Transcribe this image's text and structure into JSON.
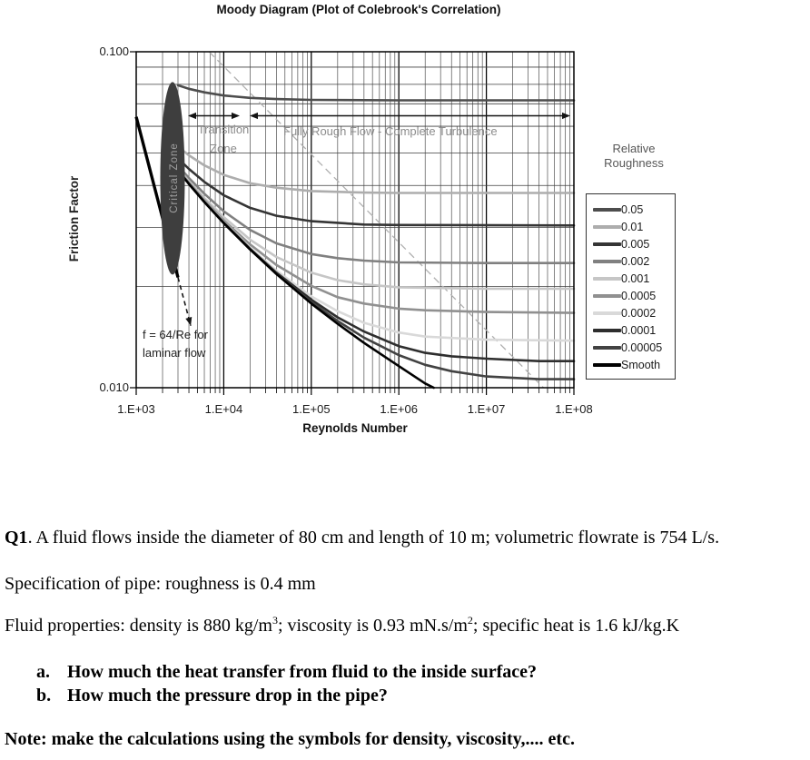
{
  "chart": {
    "title": "Moody Diagram (Plot of Colebrook's Correlation)",
    "x_axis": {
      "label": "Reynolds Number"
    },
    "y_axis": {
      "label": "Friction Factor"
    },
    "legend": {
      "title": "Relative Roughness"
    },
    "annotations": {
      "transition_line1": "Transition",
      "transition_line2": "Zone",
      "fully_rough": "Fully Rough Flow - Complete Turbulence",
      "laminar_line1": "f = 64/Re for",
      "laminar_line2": "laminar flow",
      "critical_zone": "Critical Zone"
    }
  },
  "chart_data": {
    "type": "line",
    "title": "Moody Diagram (Plot of Colebrook's Correlation)",
    "xlabel": "Reynolds Number",
    "ylabel": "Friction Factor",
    "x_scale": "log",
    "y_scale": "log",
    "xlim": [
      1000,
      100000000
    ],
    "ylim": [
      0.01,
      0.1
    ],
    "x_ticks": [
      "1.E+03",
      "1.E+04",
      "1.E+05",
      "1.E+06",
      "1.E+07",
      "1.E+08"
    ],
    "y_ticks": [
      "0.100",
      "0.010"
    ],
    "y_minor_gridlines": [
      0.02,
      0.03,
      0.04,
      0.05,
      0.06,
      0.07,
      0.08,
      0.09
    ],
    "grid": true,
    "legend_title": "Relative Roughness",
    "legend_position": "right",
    "annotations": [
      "Transition Zone",
      "Fully Rough Flow - Complete Turbulence",
      "f = 64/Re for laminar flow",
      "Critical Zone"
    ],
    "series": [
      {
        "name": "0.05",
        "color": "#4d4d4d",
        "points": [
          [
            3000,
            0.0795
          ],
          [
            4000,
            0.0776
          ],
          [
            6000,
            0.0757
          ],
          [
            10000,
            0.0741
          ],
          [
            20000,
            0.0729
          ],
          [
            40000,
            0.0723
          ],
          [
            100000,
            0.0719
          ],
          [
            1000000,
            0.0717
          ],
          [
            10000000,
            0.0717
          ],
          [
            100000000,
            0.0717
          ]
        ]
      },
      {
        "name": "0.01",
        "color": "#adadad",
        "points": [
          [
            3000,
            0.0522
          ],
          [
            4000,
            0.0492
          ],
          [
            6000,
            0.0459
          ],
          [
            10000,
            0.043
          ],
          [
            20000,
            0.0406
          ],
          [
            40000,
            0.0394
          ],
          [
            100000,
            0.0385
          ],
          [
            400000,
            0.0381
          ],
          [
            1000000,
            0.038
          ],
          [
            100000000,
            0.038
          ]
        ]
      },
      {
        "name": "0.005",
        "color": "#353535",
        "points": [
          [
            3000,
            0.0482
          ],
          [
            4000,
            0.0448
          ],
          [
            6000,
            0.041
          ],
          [
            10000,
            0.0374
          ],
          [
            20000,
            0.0343
          ],
          [
            40000,
            0.0325
          ],
          [
            100000,
            0.0313
          ],
          [
            400000,
            0.0306
          ],
          [
            1000000,
            0.0305
          ],
          [
            100000000,
            0.0304
          ]
        ]
      },
      {
        "name": "0.002",
        "color": "#808080",
        "points": [
          [
            3000,
            0.0458
          ],
          [
            4000,
            0.0421
          ],
          [
            6000,
            0.0378
          ],
          [
            10000,
            0.0335
          ],
          [
            20000,
            0.0295
          ],
          [
            40000,
            0.0269
          ],
          [
            100000,
            0.025
          ],
          [
            200000,
            0.0243
          ],
          [
            400000,
            0.0239
          ],
          [
            1000000,
            0.0236
          ],
          [
            10000000,
            0.0235
          ],
          [
            100000000,
            0.0235
          ]
        ]
      },
      {
        "name": "0.001",
        "color": "#c6c6c6",
        "points": [
          [
            3000,
            0.045
          ],
          [
            4000,
            0.0412
          ],
          [
            6000,
            0.0367
          ],
          [
            10000,
            0.0322
          ],
          [
            20000,
            0.0276
          ],
          [
            40000,
            0.0245
          ],
          [
            100000,
            0.022
          ],
          [
            200000,
            0.0209
          ],
          [
            400000,
            0.0203
          ],
          [
            1000000,
            0.0199
          ],
          [
            10000000,
            0.0197
          ],
          [
            100000000,
            0.0197
          ]
        ]
      },
      {
        "name": "0.0005",
        "color": "#909090",
        "points": [
          [
            3000,
            0.0447
          ],
          [
            4000,
            0.0408
          ],
          [
            6000,
            0.0362
          ],
          [
            10000,
            0.0315
          ],
          [
            20000,
            0.0267
          ],
          [
            40000,
            0.0232
          ],
          [
            100000,
            0.0201
          ],
          [
            200000,
            0.0186
          ],
          [
            400000,
            0.0178
          ],
          [
            1000000,
            0.0172
          ],
          [
            2000000,
            0.017
          ],
          [
            10000000,
            0.0168
          ],
          [
            100000000,
            0.0167
          ]
        ]
      },
      {
        "name": "0.0002",
        "color": "#d9d9d9",
        "points": [
          [
            3000,
            0.0445
          ],
          [
            4000,
            0.0406
          ],
          [
            6000,
            0.0359
          ],
          [
            10000,
            0.0311
          ],
          [
            20000,
            0.0261
          ],
          [
            40000,
            0.0223
          ],
          [
            100000,
            0.0187
          ],
          [
            200000,
            0.0169
          ],
          [
            400000,
            0.0156
          ],
          [
            1000000,
            0.0146
          ],
          [
            2000000,
            0.0142
          ],
          [
            10000000,
            0.0139
          ],
          [
            100000000,
            0.0138
          ]
        ]
      },
      {
        "name": "0.0001",
        "color": "#2e2e2e",
        "points": [
          [
            3000,
            0.0444
          ],
          [
            4000,
            0.0405
          ],
          [
            6000,
            0.0358
          ],
          [
            10000,
            0.031
          ],
          [
            20000,
            0.0259
          ],
          [
            40000,
            0.022
          ],
          [
            100000,
            0.0183
          ],
          [
            200000,
            0.0162
          ],
          [
            400000,
            0.0147
          ],
          [
            1000000,
            0.0133
          ],
          [
            2000000,
            0.0127
          ],
          [
            4000000,
            0.0124
          ],
          [
            10000000,
            0.0122
          ],
          [
            40000000,
            0.012
          ],
          [
            100000000,
            0.012
          ]
        ]
      },
      {
        "name": "0.00005",
        "color": "#424242",
        "points": [
          [
            3000,
            0.0444
          ],
          [
            4000,
            0.0405
          ],
          [
            6000,
            0.0358
          ],
          [
            10000,
            0.0309
          ],
          [
            20000,
            0.0258
          ],
          [
            40000,
            0.0219
          ],
          [
            100000,
            0.018
          ],
          [
            200000,
            0.0158
          ],
          [
            400000,
            0.0141
          ],
          [
            1000000,
            0.0125
          ],
          [
            2000000,
            0.0117
          ],
          [
            4000000,
            0.0112
          ],
          [
            10000000,
            0.0108
          ],
          [
            40000000,
            0.0106
          ],
          [
            100000000,
            0.0106
          ]
        ]
      },
      {
        "name": "Smooth",
        "color": "#000000",
        "points": [
          [
            3000,
            0.0443
          ],
          [
            4000,
            0.0404
          ],
          [
            6000,
            0.0357
          ],
          [
            10000,
            0.0309
          ],
          [
            20000,
            0.0258
          ],
          [
            40000,
            0.0218
          ],
          [
            100000,
            0.0178
          ],
          [
            200000,
            0.0155
          ],
          [
            400000,
            0.0136
          ],
          [
            1000000,
            0.0116
          ],
          [
            2000000,
            0.0103
          ],
          [
            2500000,
            0.01
          ]
        ]
      }
    ],
    "laminar_line": {
      "formula": "f = 64/Re",
      "points": [
        [
          1000,
          0.064
        ],
        [
          3000,
          0.0213
        ]
      ],
      "dashed_extension": [
        [
          3000,
          0.0213
        ],
        [
          4200,
          0.0153
        ]
      ]
    },
    "transition_boundary": {
      "style": "dashed",
      "color": "#b0b0b0",
      "points": [
        [
          6800,
          0.1
        ],
        [
          45000000,
          0.01
        ]
      ]
    },
    "critical_zone": {
      "label": "Critical Zone",
      "re_center": 2600,
      "f_center": 0.042
    }
  },
  "questions": {
    "q1": {
      "label": "Q1",
      "text": ". A fluid flows inside the diameter of 80 cm and length of 10 m; volumetric flowrate is 754 L/s."
    },
    "spec": "Specification of pipe: roughness is 0.4 mm",
    "props": {
      "p1": "Fluid properties: density is 880 kg/m",
      "sup1": "3",
      "p2": "; viscosity is 0.93 mN.s/m",
      "sup2": "2",
      "p3": "; specific heat is 1.6 kJ/kg.K"
    },
    "items": [
      {
        "marker": "a.",
        "text": "How much the heat transfer from fluid to the inside surface?"
      },
      {
        "marker": "b.",
        "text": "How much the pressure drop in the pipe?"
      }
    ],
    "note": "Note: make the calculations using the symbols for density, viscosity,.... etc."
  }
}
